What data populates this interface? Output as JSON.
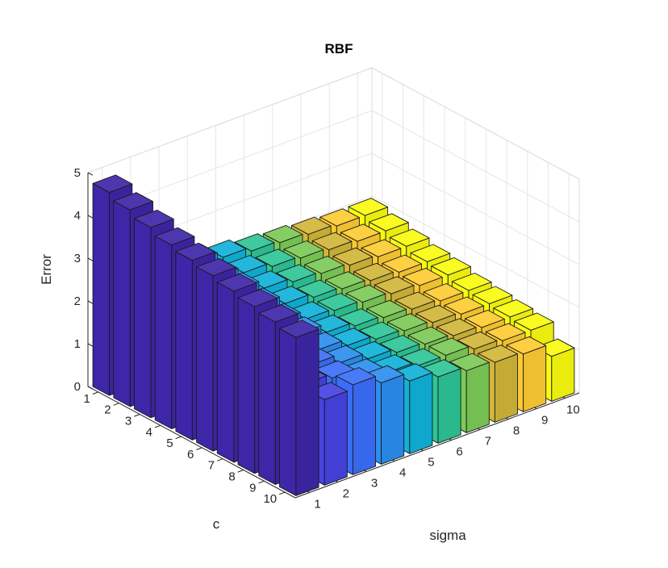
{
  "chart_data": {
    "type": "bar3d",
    "title": "RBF",
    "xlabel": "sigma",
    "ylabel": "c",
    "zlabel": "Error",
    "sigma": [
      1,
      2,
      3,
      4,
      5,
      6,
      7,
      8,
      9,
      10
    ],
    "c": [
      1,
      2,
      3,
      4,
      5,
      6,
      7,
      8,
      9,
      10
    ],
    "zlim": [
      0,
      5
    ],
    "z_ticks": [
      0,
      1,
      2,
      3,
      4,
      5
    ],
    "grid": true,
    "colors": [
      "#3e26a8",
      "#4543e3",
      "#3a6ef9",
      "#2c8ef0",
      "#10b2d8",
      "#2dc496",
      "#7cca57",
      "#d1b638",
      "#fdcb32",
      "#f9fb0e"
    ],
    "errors": [
      [
        4.75,
        2.9,
        2.6,
        2.4,
        2.25,
        2.15,
        2.1,
        2.05,
        2.0,
        2.0
      ],
      [
        4.6,
        2.8,
        2.5,
        2.3,
        2.15,
        2.05,
        2.0,
        1.95,
        1.9,
        1.9
      ],
      [
        4.45,
        2.7,
        2.45,
        2.25,
        2.05,
        1.95,
        1.9,
        1.85,
        1.8,
        1.8
      ],
      [
        4.3,
        2.6,
        2.35,
        2.15,
        1.95,
        1.85,
        1.8,
        1.75,
        1.7,
        1.7
      ],
      [
        4.2,
        2.5,
        2.3,
        2.05,
        1.85,
        1.8,
        1.75,
        1.7,
        1.65,
        1.65
      ],
      [
        4.1,
        2.4,
        2.2,
        2.0,
        1.8,
        1.7,
        1.65,
        1.6,
        1.55,
        1.55
      ],
      [
        4.0,
        2.3,
        2.1,
        1.9,
        1.75,
        1.65,
        1.6,
        1.55,
        1.5,
        1.5
      ],
      [
        3.9,
        2.2,
        2.05,
        1.85,
        1.7,
        1.6,
        1.55,
        1.5,
        1.45,
        1.45
      ],
      [
        3.8,
        2.1,
        2.0,
        1.8,
        1.65,
        1.55,
        1.55,
        1.45,
        1.4,
        1.4
      ],
      [
        3.7,
        2.0,
        2.1,
        1.9,
        1.7,
        1.55,
        1.45,
        1.4,
        1.35,
        1.05
      ]
    ]
  }
}
